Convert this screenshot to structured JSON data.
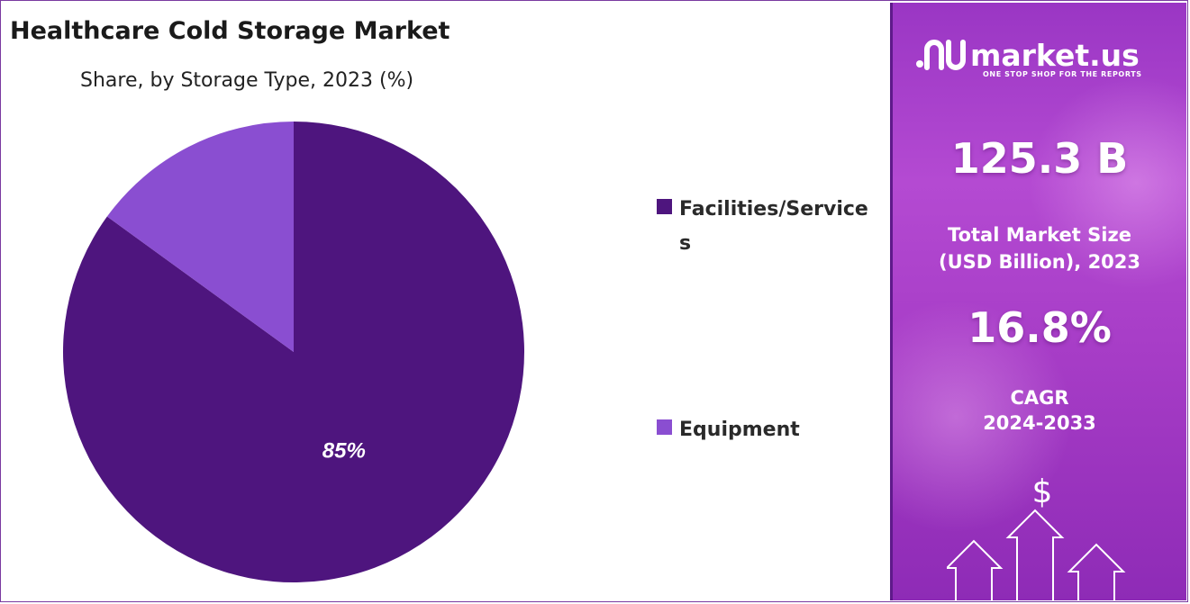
{
  "chart_data": {
    "type": "pie",
    "title": "Healthcare Cold Storage Market",
    "subtitle": "Share, by Storage Type, 2023 (%)",
    "slices": [
      {
        "label": "Facilities/Services",
        "value": 85,
        "display": "85%"
      },
      {
        "label": "Equipment",
        "value": 15,
        "display": ""
      }
    ],
    "legend_placement": "right"
  },
  "colors": {
    "facilities": "#4e157e",
    "equipment": "#8a4ed1",
    "panel": "#a63cc6",
    "frame": "#7a3aa0"
  },
  "brand": {
    "name": "market.us",
    "tagline": "ONE STOP SHOP FOR THE REPORTS",
    "logo_icon": "market-us-logo-icon"
  },
  "stats": {
    "market_size_value": "125.3 B",
    "market_size_label_1": "Total Market Size",
    "market_size_label_2": "(USD Billion), 2023",
    "cagr_value": "16.8%",
    "cagr_label_1": "CAGR",
    "cagr_label_2": "2024-2033"
  },
  "decor": {
    "dollar_symbol": "$",
    "arrows_icon": "growth-arrows-icon"
  }
}
